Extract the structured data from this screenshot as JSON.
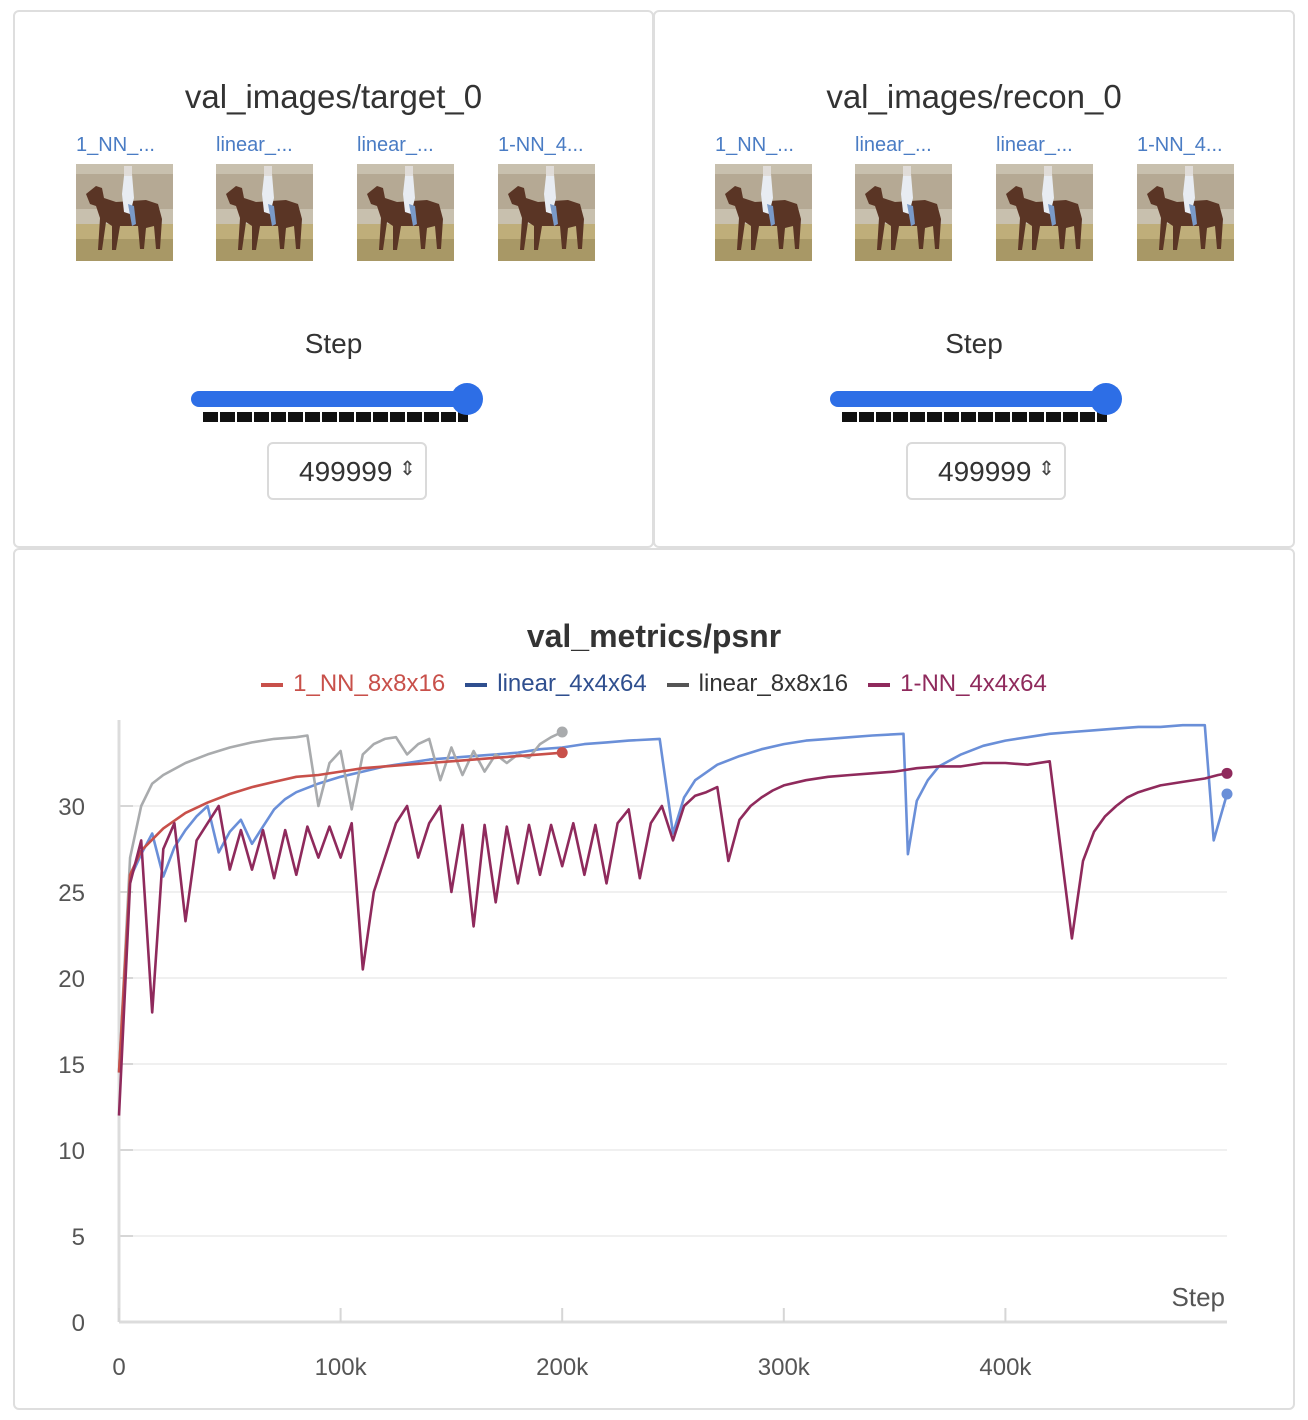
{
  "panels": [
    {
      "title": "val_images/target_0",
      "captions": [
        "1_NN_...",
        "linear_...",
        "linear_...",
        "1-NN_4..."
      ],
      "step_label": "Step",
      "step_value": "499999",
      "slider_fraction": 1.0
    },
    {
      "title": "val_images/recon_0",
      "captions": [
        "1_NN_...",
        "linear_...",
        "linear_...",
        "1-NN_4..."
      ],
      "step_label": "Step",
      "step_value": "499999",
      "slider_fraction": 1.0
    }
  ],
  "colors": {
    "1_NN_8x8x16": "#c8504a",
    "linear_4x4x64": "#6a8fd8",
    "linear_8x8x16": "#a9abad",
    "1-NN_4x4x64": "#8f2a5c",
    "slider": "#2d6ee6"
  },
  "icons": {
    "stepper": "up-down-chevron-icon"
  },
  "chart_data": {
    "type": "line",
    "title": "val_metrics/psnr",
    "xlabel": "Step",
    "ylabel": "",
    "xlim": [
      0,
      500000
    ],
    "ylim": [
      0,
      35
    ],
    "xticks": [
      0,
      100000,
      200000,
      300000,
      400000
    ],
    "xtick_labels": [
      "0",
      "100k",
      "200k",
      "300k",
      "400k"
    ],
    "yticks": [
      0,
      5,
      10,
      15,
      20,
      25,
      30
    ],
    "grid": "horizontal",
    "legend": "top-center",
    "series": [
      {
        "name": "linear_4x4x64",
        "legend_color": "#2f4f8f",
        "color": "#6a8fd8",
        "x": [
          0,
          5000,
          10000,
          15000,
          20000,
          25000,
          30000,
          35000,
          40000,
          45000,
          50000,
          55000,
          60000,
          65000,
          70000,
          75000,
          80000,
          90000,
          100000,
          110000,
          120000,
          130000,
          140000,
          150000,
          160000,
          170000,
          180000,
          190000,
          200000,
          210000,
          220000,
          230000,
          244000,
          250000,
          255000,
          260000,
          270000,
          280000,
          290000,
          300000,
          310000,
          320000,
          330000,
          340000,
          354000,
          356000,
          360000,
          365000,
          370000,
          380000,
          390000,
          400000,
          410000,
          420000,
          430000,
          440000,
          450000,
          460000,
          470000,
          480000,
          490000,
          494000,
          500000
        ],
        "y": [
          14.5,
          25.8,
          27.2,
          28.4,
          25.9,
          27.6,
          28.6,
          29.4,
          30.0,
          27.3,
          28.5,
          29.2,
          27.8,
          28.8,
          29.8,
          30.4,
          30.8,
          31.3,
          31.7,
          32.0,
          32.3,
          32.5,
          32.7,
          32.8,
          32.9,
          33.0,
          33.1,
          33.3,
          33.4,
          33.6,
          33.7,
          33.8,
          33.9,
          28.4,
          30.5,
          31.5,
          32.4,
          32.9,
          33.3,
          33.6,
          33.8,
          33.9,
          34.0,
          34.1,
          34.2,
          27.2,
          30.3,
          31.5,
          32.3,
          33.0,
          33.5,
          33.8,
          34.0,
          34.2,
          34.3,
          34.4,
          34.5,
          34.6,
          34.6,
          34.7,
          34.7,
          28.0,
          30.7
        ]
      },
      {
        "name": "linear_8x8x16",
        "legend_color": "#555555",
        "color": "#a9abad",
        "x": [
          0,
          5000,
          10000,
          15000,
          20000,
          30000,
          40000,
          50000,
          60000,
          70000,
          80000,
          85000,
          90000,
          95000,
          100000,
          105000,
          110000,
          115000,
          120000,
          125000,
          130000,
          135000,
          140000,
          145000,
          150000,
          155000,
          160000,
          165000,
          170000,
          175000,
          180000,
          185000,
          190000,
          195000,
          200000
        ],
        "y": [
          14.5,
          27.0,
          30.0,
          31.3,
          31.8,
          32.5,
          33.0,
          33.4,
          33.7,
          33.9,
          34.0,
          34.1,
          30.0,
          32.5,
          33.2,
          29.8,
          33.0,
          33.6,
          33.9,
          34.0,
          33.0,
          33.6,
          33.9,
          31.5,
          33.4,
          31.8,
          33.2,
          32.0,
          33.0,
          32.5,
          33.0,
          32.8,
          33.6,
          34.0,
          34.3
        ]
      },
      {
        "name": "1_NN_8x8x16",
        "legend_color": "#c8504a",
        "color": "#c8504a",
        "x": [
          0,
          5000,
          10000,
          20000,
          30000,
          40000,
          50000,
          60000,
          70000,
          80000,
          90000,
          100000,
          110000,
          120000,
          130000,
          140000,
          150000,
          160000,
          170000,
          180000,
          190000,
          200000
        ],
        "y": [
          14.5,
          26.0,
          27.4,
          28.7,
          29.6,
          30.2,
          30.7,
          31.1,
          31.4,
          31.7,
          31.8,
          32.0,
          32.2,
          32.3,
          32.4,
          32.5,
          32.6,
          32.7,
          32.8,
          32.9,
          33.0,
          33.1
        ]
      },
      {
        "name": "1-NN_4x4x64",
        "legend_color": "#8f2a5c",
        "color": "#8f2a5c",
        "x": [
          0,
          5000,
          10000,
          15000,
          20000,
          25000,
          30000,
          35000,
          40000,
          45000,
          50000,
          55000,
          60000,
          65000,
          70000,
          75000,
          80000,
          85000,
          90000,
          95000,
          100000,
          105000,
          110000,
          115000,
          120000,
          125000,
          130000,
          135000,
          140000,
          145000,
          150000,
          155000,
          160000,
          165000,
          170000,
          175000,
          180000,
          185000,
          190000,
          195000,
          200000,
          205000,
          210000,
          215000,
          220000,
          225000,
          230000,
          235000,
          240000,
          245000,
          250000,
          255000,
          260000,
          265000,
          270000,
          275000,
          280000,
          285000,
          290000,
          295000,
          300000,
          310000,
          320000,
          330000,
          340000,
          350000,
          360000,
          370000,
          380000,
          390000,
          400000,
          410000,
          420000,
          430000,
          435000,
          440000,
          445000,
          450000,
          455000,
          460000,
          470000,
          480000,
          490000,
          496000,
          500000
        ],
        "y": [
          12.0,
          25.5,
          28.0,
          18.0,
          27.5,
          29.0,
          23.3,
          28.0,
          29.0,
          30.0,
          26.3,
          28.6,
          26.3,
          28.6,
          25.8,
          28.6,
          26.0,
          28.8,
          27.0,
          28.8,
          27.0,
          29.0,
          20.5,
          25.0,
          27.0,
          29.0,
          30.0,
          27.0,
          29.0,
          30.0,
          25.0,
          28.9,
          23.0,
          28.9,
          24.4,
          28.8,
          25.5,
          28.9,
          26.0,
          28.9,
          26.5,
          29.0,
          26.0,
          28.9,
          25.5,
          29.0,
          29.8,
          25.8,
          29.0,
          30.0,
          28.0,
          30.0,
          30.6,
          30.8,
          31.1,
          26.8,
          29.2,
          30.0,
          30.5,
          30.9,
          31.2,
          31.5,
          31.7,
          31.8,
          31.9,
          32.0,
          32.2,
          32.3,
          32.3,
          32.5,
          32.5,
          32.4,
          32.6,
          22.3,
          26.8,
          28.5,
          29.4,
          30.0,
          30.5,
          30.8,
          31.2,
          31.4,
          31.6,
          31.8,
          31.9
        ]
      }
    ]
  }
}
